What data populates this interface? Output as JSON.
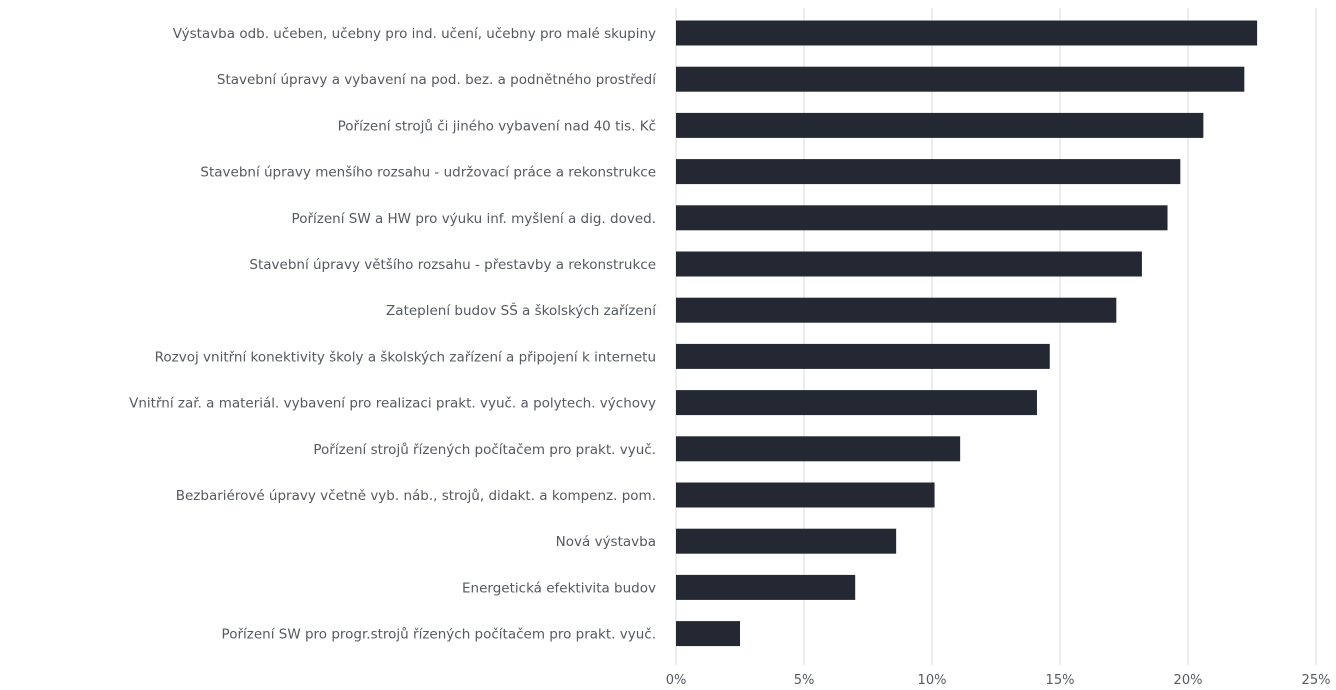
{
  "chart_data": {
    "type": "bar",
    "orientation": "horizontal",
    "title": "",
    "xlabel": "",
    "ylabel": "",
    "categories": [
      "Výstavba odb. učeben, učebny pro ind. učení, učebny pro malé skupiny",
      "Stavební úpravy a vybavení na pod. bez. a podnětného prostředí",
      "Pořízení strojů či jiného vybavení nad 40 tis. Kč",
      "Stavební úpravy menšího rozsahu - udržovací práce a rekonstrukce",
      "Pořízení SW a HW pro výuku inf. myšlení a dig. doved.",
      "Stavební úpravy většího rozsahu - přestavby a rekonstrukce",
      "Zateplení budov SŠ a školských zařízení",
      "Rozvoj vnitřní konektivity školy a školských zařízení a připojení k internetu",
      "Vnitřní zař. a materiál. vybavení pro realizaci prakt. vyuč. a polytech. výchovy",
      "Pořízení strojů řízených počítačem pro prakt. vyuč.",
      "Bezbariérové úpravy včetně vyb. náb., strojů, didakt. a kompenz. pom.",
      "Nová výstavba",
      "Energetická efektivita budov",
      "Pořízení SW pro progr.strojů řízených počítačem pro prakt. vyuč."
    ],
    "values": [
      22.7,
      22.2,
      20.6,
      19.7,
      19.2,
      18.2,
      17.2,
      14.6,
      14.1,
      11.1,
      10.1,
      8.6,
      7.0,
      2.5
    ],
    "x_ticks": [
      "0%",
      "5%",
      "10%",
      "15%",
      "20%",
      "25%"
    ],
    "xlim": [
      0,
      25
    ],
    "grid": true,
    "legend": "none",
    "bar_color": "#232833",
    "grid_color": "#d9d9d9",
    "label_color": "#555a60"
  }
}
